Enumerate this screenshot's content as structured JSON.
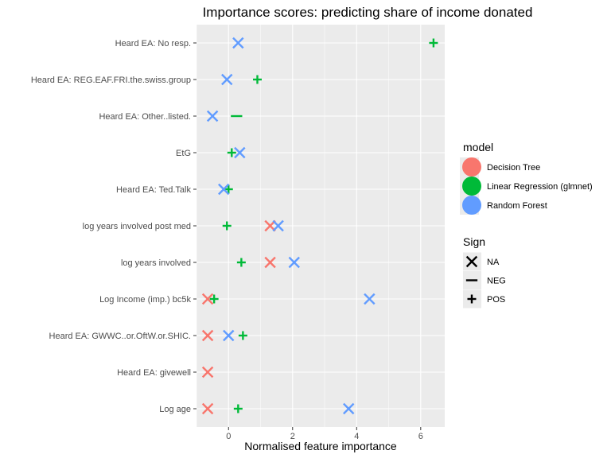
{
  "chart_data": {
    "type": "scatter",
    "title": "Importance scores: predicting share of income donated",
    "xlabel": "Normalised feature importance",
    "ylabel": "",
    "xlim": [
      -1.0,
      6.75
    ],
    "xticks": [
      0,
      2,
      4,
      6
    ],
    "grid": true,
    "legend_placement": "right",
    "categories": [
      "Heard EA: No resp.",
      "Heard EA: REG.EAF.FRI.the.swiss.group",
      "Heard EA: Other..listed.",
      "EtG",
      "Heard EA: Ted.Talk",
      "log years involved post med",
      "log years involved",
      "Log Income (imp.) bc5k",
      "Heard EA: GWWC..or.OftW.or.SHIC.",
      "Heard EA: givewell",
      "Log age"
    ],
    "series": [
      {
        "name": "Decision Tree",
        "color": "#F8766D",
        "points": [
          {
            "category": "log years involved post med",
            "x": 1.3,
            "sign": "NA"
          },
          {
            "category": "log years involved",
            "x": 1.3,
            "sign": "NA"
          },
          {
            "category": "Log Income (imp.) bc5k",
            "x": -0.65,
            "sign": "NA"
          },
          {
            "category": "Heard EA: GWWC..or.OftW.or.SHIC.",
            "x": -0.65,
            "sign": "NA"
          },
          {
            "category": "Heard EA: givewell",
            "x": -0.65,
            "sign": "NA"
          },
          {
            "category": "Log age",
            "x": -0.65,
            "sign": "NA"
          }
        ]
      },
      {
        "name": "Linear Regression (glmnet)",
        "color": "#00BA38",
        "points": [
          {
            "category": "Heard EA: No resp.",
            "x": 6.4,
            "sign": "POS"
          },
          {
            "category": "Heard EA: REG.EAF.FRI.the.swiss.group",
            "x": 0.9,
            "sign": "POS"
          },
          {
            "category": "Heard EA: Other..listed.",
            "x": 0.25,
            "sign": "NEG"
          },
          {
            "category": "EtG",
            "x": 0.1,
            "sign": "POS"
          },
          {
            "category": "Heard EA: Ted.Talk",
            "x": 0.0,
            "sign": "POS"
          },
          {
            "category": "log years involved post med",
            "x": -0.05,
            "sign": "POS"
          },
          {
            "category": "log years involved",
            "x": 0.4,
            "sign": "POS"
          },
          {
            "category": "Log Income (imp.) bc5k",
            "x": -0.45,
            "sign": "POS"
          },
          {
            "category": "Heard EA: GWWC..or.OftW.or.SHIC.",
            "x": 0.45,
            "sign": "POS"
          },
          {
            "category": "Log age",
            "x": 0.3,
            "sign": "POS"
          }
        ]
      },
      {
        "name": "Random Forest",
        "color": "#619CFF",
        "points": [
          {
            "category": "Heard EA: No resp.",
            "x": 0.3,
            "sign": "NA"
          },
          {
            "category": "Heard EA: REG.EAF.FRI.the.swiss.group",
            "x": -0.05,
            "sign": "NA"
          },
          {
            "category": "Heard EA: Other..listed.",
            "x": -0.5,
            "sign": "NA"
          },
          {
            "category": "EtG",
            "x": 0.35,
            "sign": "NA"
          },
          {
            "category": "Heard EA: Ted.Talk",
            "x": -0.15,
            "sign": "NA"
          },
          {
            "category": "log years involved post med",
            "x": 1.55,
            "sign": "NA"
          },
          {
            "category": "log years involved",
            "x": 2.05,
            "sign": "NA"
          },
          {
            "category": "Log Income (imp.) bc5k",
            "x": 4.4,
            "sign": "NA"
          },
          {
            "category": "Heard EA: GWWC..or.OftW.or.SHIC.",
            "x": 0.0,
            "sign": "NA"
          },
          {
            "category": "Log age",
            "x": 3.75,
            "sign": "NA"
          }
        ]
      }
    ],
    "legend": {
      "color_title": "model",
      "color_entries": [
        {
          "label": "Decision Tree",
          "color": "#F8766D"
        },
        {
          "label": "Linear Regression (glmnet)",
          "color": "#00BA38"
        },
        {
          "label": "Random Forest",
          "color": "#619CFF"
        }
      ],
      "shape_title": "Sign",
      "shape_entries": [
        {
          "label": "NA",
          "shape": "x"
        },
        {
          "label": "NEG",
          "shape": "dash"
        },
        {
          "label": "POS",
          "shape": "plus"
        }
      ]
    }
  }
}
